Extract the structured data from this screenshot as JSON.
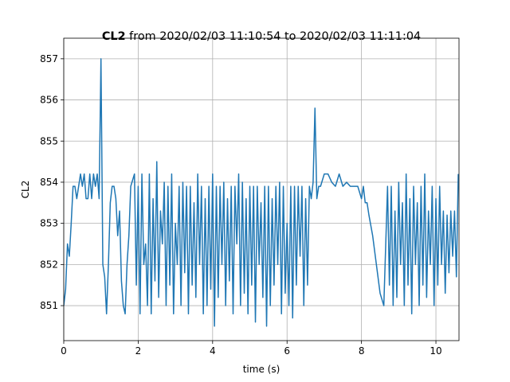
{
  "chart_data": {
    "type": "line",
    "title": {
      "bold": "CL2",
      "rest": "from 2020/02/03 11:10:54 to 2020/02/03 11:11:04"
    },
    "xlabel": "time (s)",
    "ylabel": "CL2",
    "xlim": [
      0,
      10.62
    ],
    "ylim": [
      850.15,
      857.5
    ],
    "xticks": [
      0,
      2,
      4,
      6,
      8,
      10
    ],
    "yticks": [
      851,
      852,
      853,
      854,
      855,
      856,
      857
    ],
    "grid": true,
    "color": "#1f77b4",
    "x": [
      0,
      0.05,
      0.1,
      0.15,
      0.2,
      0.25,
      0.3,
      0.35,
      0.4,
      0.45,
      0.5,
      0.55,
      0.6,
      0.65,
      0.7,
      0.75,
      0.8,
      0.85,
      0.9,
      0.95,
      1.0,
      1.05,
      1.1,
      1.15,
      1.2,
      1.25,
      1.3,
      1.35,
      1.4,
      1.45,
      1.5,
      1.55,
      1.6,
      1.65,
      1.7,
      1.75,
      1.8,
      1.9,
      1.95,
      2.0,
      2.05,
      2.1,
      2.15,
      2.2,
      2.25,
      2.3,
      2.35,
      2.4,
      2.45,
      2.5,
      2.55,
      2.6,
      2.65,
      2.7,
      2.75,
      2.8,
      2.85,
      2.9,
      2.95,
      3.0,
      3.05,
      3.1,
      3.15,
      3.2,
      3.25,
      3.3,
      3.35,
      3.4,
      3.45,
      3.5,
      3.55,
      3.6,
      3.65,
      3.7,
      3.75,
      3.8,
      3.85,
      3.9,
      3.95,
      4.0,
      4.05,
      4.1,
      4.15,
      4.2,
      4.25,
      4.3,
      4.35,
      4.4,
      4.45,
      4.5,
      4.55,
      4.6,
      4.65,
      4.7,
      4.75,
      4.8,
      4.85,
      4.9,
      4.95,
      5.0,
      5.05,
      5.1,
      5.15,
      5.2,
      5.25,
      5.3,
      5.35,
      5.4,
      5.45,
      5.5,
      5.55,
      5.6,
      5.65,
      5.7,
      5.75,
      5.8,
      5.85,
      5.9,
      5.95,
      6.0,
      6.05,
      6.1,
      6.15,
      6.2,
      6.25,
      6.3,
      6.35,
      6.4,
      6.45,
      6.5,
      6.55,
      6.6,
      6.65,
      6.7,
      6.75,
      6.8,
      6.85,
      6.9,
      7.0,
      7.1,
      7.2,
      7.3,
      7.4,
      7.5,
      7.6,
      7.7,
      7.8,
      7.9,
      8.0,
      8.05,
      8.1,
      8.15,
      8.2,
      8.3,
      8.4,
      8.5,
      8.6,
      8.7,
      8.75,
      8.8,
      8.85,
      8.9,
      8.95,
      9.0,
      9.05,
      9.1,
      9.15,
      9.2,
      9.25,
      9.3,
      9.35,
      9.4,
      9.45,
      9.5,
      9.55,
      9.6,
      9.65,
      9.7,
      9.75,
      9.8,
      9.85,
      9.9,
      9.95,
      10.0,
      10.05,
      10.1,
      10.15,
      10.2,
      10.25,
      10.3,
      10.35,
      10.4,
      10.45,
      10.5,
      10.55,
      10.6
    ],
    "values": [
      851.0,
      851.4,
      852.5,
      852.2,
      853.0,
      853.9,
      853.9,
      853.6,
      853.9,
      854.2,
      853.9,
      854.2,
      853.6,
      853.6,
      854.2,
      853.6,
      854.2,
      853.9,
      854.2,
      853.6,
      857.0,
      852.0,
      851.7,
      850.8,
      852.0,
      853.5,
      853.9,
      853.9,
      853.6,
      852.7,
      853.3,
      851.6,
      851.0,
      850.8,
      852.0,
      852.7,
      853.9,
      854.2,
      851.5,
      853.9,
      850.8,
      854.2,
      852.0,
      852.5,
      851.0,
      854.2,
      850.8,
      853.6,
      851.6,
      854.5,
      851.2,
      853.3,
      852.5,
      854.0,
      851.0,
      853.9,
      851.5,
      854.2,
      850.8,
      853.0,
      852.0,
      853.9,
      851.0,
      854.0,
      851.8,
      853.9,
      850.8,
      853.9,
      851.5,
      853.5,
      851.2,
      854.2,
      852.0,
      853.9,
      850.8,
      853.6,
      851.0,
      853.9,
      851.4,
      854.2,
      850.5,
      853.9,
      851.2,
      853.9,
      852.0,
      854.0,
      851.0,
      853.6,
      851.6,
      853.9,
      850.8,
      853.9,
      852.5,
      854.2,
      851.0,
      854.0,
      851.3,
      853.6,
      850.8,
      853.9,
      851.5,
      853.9,
      850.6,
      853.9,
      852.0,
      853.5,
      851.2,
      853.9,
      850.5,
      853.9,
      851.0,
      853.6,
      851.5,
      853.9,
      852.0,
      854.0,
      850.8,
      853.9,
      851.3,
      853.0,
      851.0,
      853.9,
      850.7,
      853.9,
      851.5,
      853.9,
      852.2,
      853.9,
      851.0,
      853.6,
      851.5,
      853.9,
      853.6,
      854.0,
      855.8,
      853.6,
      853.9,
      853.9,
      854.2,
      854.2,
      854.0,
      853.9,
      854.2,
      853.9,
      854.0,
      853.9,
      853.9,
      853.9,
      853.6,
      853.9,
      853.5,
      853.5,
      853.2,
      852.7,
      852.0,
      851.3,
      851.0,
      853.9,
      851.5,
      853.9,
      851.0,
      853.3,
      851.2,
      854.0,
      852.0,
      853.5,
      851.0,
      854.2,
      851.5,
      853.6,
      850.8,
      853.9,
      852.0,
      853.5,
      851.0,
      853.9,
      851.5,
      854.2,
      851.2,
      853.3,
      852.0,
      853.9,
      851.0,
      853.6,
      851.5,
      853.9,
      852.0,
      853.3,
      851.3,
      853.2,
      851.8,
      853.3,
      852.2,
      853.3,
      851.7,
      854.2
    ]
  }
}
